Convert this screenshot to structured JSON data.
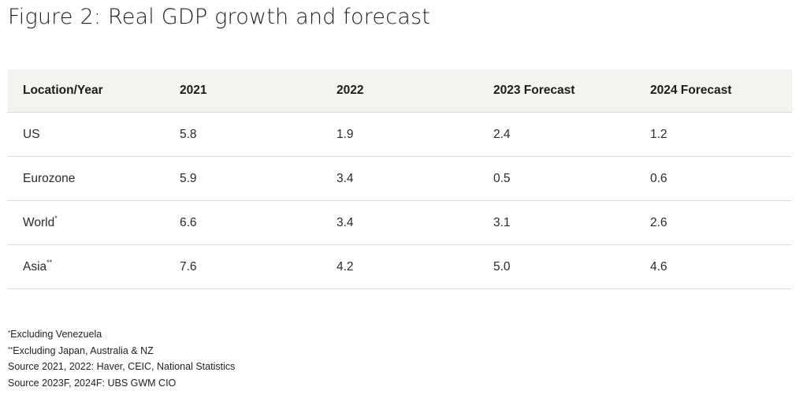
{
  "figure": {
    "title": "Figure 2: Real GDP growth and forecast"
  },
  "table": {
    "headers": [
      "Location/Year",
      "2021",
      "2022",
      "2023 Forecast",
      "2024 Forecast"
    ],
    "rows": [
      {
        "location": "US",
        "marker": "",
        "values": [
          "5.8",
          "1.9",
          "2.4",
          "1.2"
        ]
      },
      {
        "location": "Eurozone",
        "marker": "",
        "values": [
          "5.9",
          "3.4",
          "0.5",
          "0.6"
        ]
      },
      {
        "location": "World",
        "marker": "*",
        "values": [
          "6.6",
          "3.4",
          "3.1",
          "2.6"
        ]
      },
      {
        "location": "Asia",
        "marker": "**",
        "values": [
          "7.6",
          "4.2",
          "5.0",
          "4.6"
        ]
      }
    ]
  },
  "footnotes": [
    {
      "marker": "*",
      "text": "Excluding Venezuela"
    },
    {
      "marker": "**",
      "text": "Excluding Japan, Australia & NZ"
    },
    {
      "marker": "",
      "text": "Source 2021, 2022: Haver, CEIC, National Statistics"
    },
    {
      "marker": "",
      "text": "Source 2023F, 2024F: UBS GWM CIO"
    }
  ]
}
